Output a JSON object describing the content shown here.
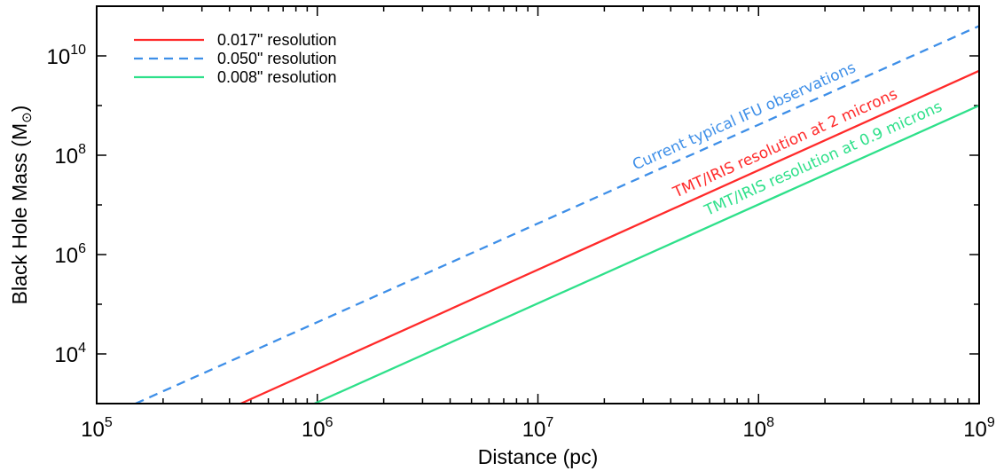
{
  "chart_data": {
    "type": "line",
    "xscale": "log",
    "yscale": "log",
    "xlim": [
      100000,
      1000000000
    ],
    "ylim": [
      1000,
      100000000000
    ],
    "xlabel": "Distance (pc)",
    "ylabel": "Black Hole Mass (M",
    "ylabel_sub": "⊙",
    "ylabel_close": ")",
    "x_ticks": [
      {
        "value": 100000,
        "base": "10",
        "exp": "5"
      },
      {
        "value": 1000000,
        "base": "10",
        "exp": "6"
      },
      {
        "value": 10000000,
        "base": "10",
        "exp": "7"
      },
      {
        "value": 100000000,
        "base": "10",
        "exp": "8"
      },
      {
        "value": 1000000000,
        "base": "10",
        "exp": "9"
      }
    ],
    "y_ticks": [
      {
        "value": 10000,
        "base": "10",
        "exp": "4"
      },
      {
        "value": 1000000,
        "base": "10",
        "exp": "6"
      },
      {
        "value": 100000000,
        "base": "10",
        "exp": "8"
      },
      {
        "value": 10000000000,
        "base": "10",
        "exp": "10"
      }
    ],
    "grid": false,
    "legend_position": "top-left",
    "series": [
      {
        "name": "0.017\" resolution",
        "color": "#ff2a2a",
        "style": "solid",
        "x": [
          450000,
          1000000000
        ],
        "y": [
          1000,
          5000000000
        ],
        "annotation": "TMT/IRIS resolution at 2 microns"
      },
      {
        "name": "0.050\" resolution",
        "color": "#3e8fe8",
        "style": "dashed",
        "x": [
          150000,
          1000000000
        ],
        "y": [
          1000,
          40000000000
        ],
        "annotation": "Current typical IFU observations"
      },
      {
        "name": "0.008\" resolution",
        "color": "#2ee08a",
        "style": "solid",
        "x": [
          970000,
          1000000000
        ],
        "y": [
          1000,
          1000000000
        ],
        "annotation": "TMT/IRIS resolution at 0.9 microns"
      }
    ]
  }
}
